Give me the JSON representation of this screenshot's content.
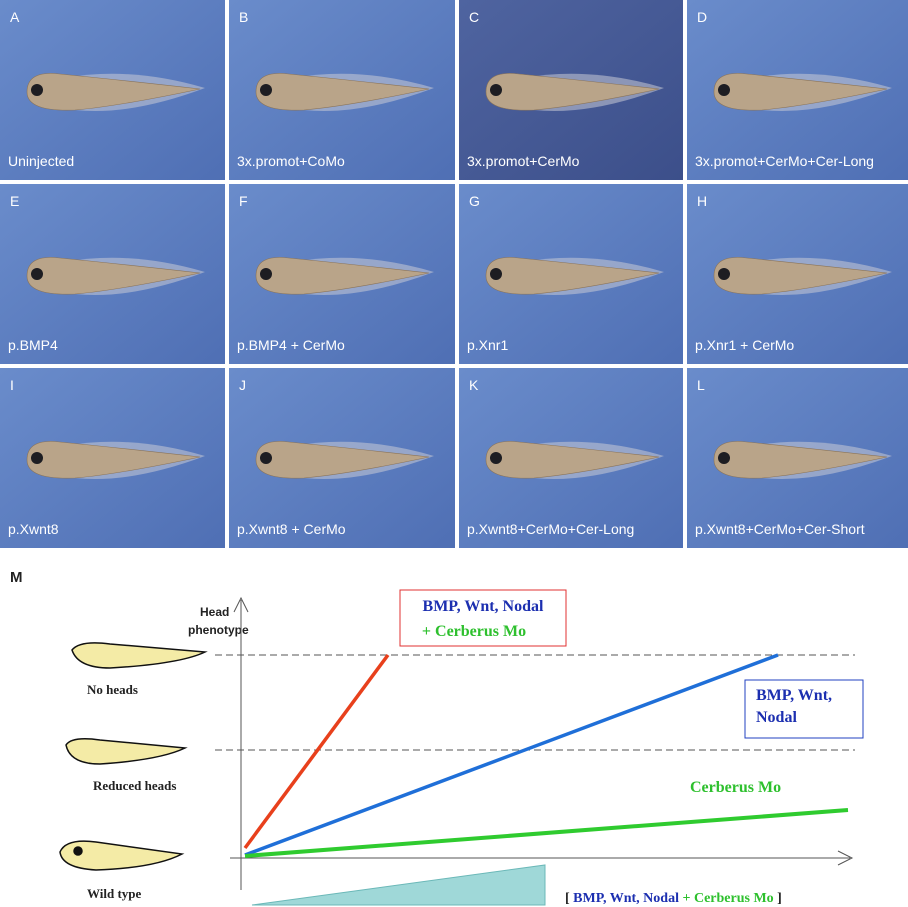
{
  "panels": [
    {
      "letter": "A",
      "caption": "Uninjected"
    },
    {
      "letter": "B",
      "caption": "3x.promot+CoMo"
    },
    {
      "letter": "C",
      "caption": "3x.promot+CerMo"
    },
    {
      "letter": "D",
      "caption": "3x.promot+CerMo+Cer-Long"
    },
    {
      "letter": "E",
      "caption": "p.BMP4"
    },
    {
      "letter": "F",
      "caption": "p.BMP4 + CerMo"
    },
    {
      "letter": "G",
      "caption": "p.Xnr1"
    },
    {
      "letter": "H",
      "caption": "p.Xnr1 + CerMo"
    },
    {
      "letter": "I",
      "caption": "p.Xwnt8"
    },
    {
      "letter": "J",
      "caption": "p.Xwnt8 + CerMo"
    },
    {
      "letter": "K",
      "caption": "p.Xwnt8+CerMo+Cer-Long"
    },
    {
      "letter": "L",
      "caption": "p.Xwnt8+CerMo+Cer-Short"
    }
  ],
  "diagram": {
    "label": "M",
    "y_axis_label": [
      "Head",
      "phenotype"
    ],
    "levels": [
      "No heads",
      "Reduced heads",
      "Wild type"
    ],
    "red_box": [
      "BMP, Wnt, Nodal",
      "+ Cerberus Mo"
    ],
    "blue_box": [
      "BMP, Wnt,",
      "Nodal"
    ],
    "green_label": "Cerberus Mo",
    "legend": {
      "open": "[",
      "blue": "BMP, Wnt, Nodal",
      "green": "+ Cerberus Mo",
      "close": "]"
    }
  }
}
